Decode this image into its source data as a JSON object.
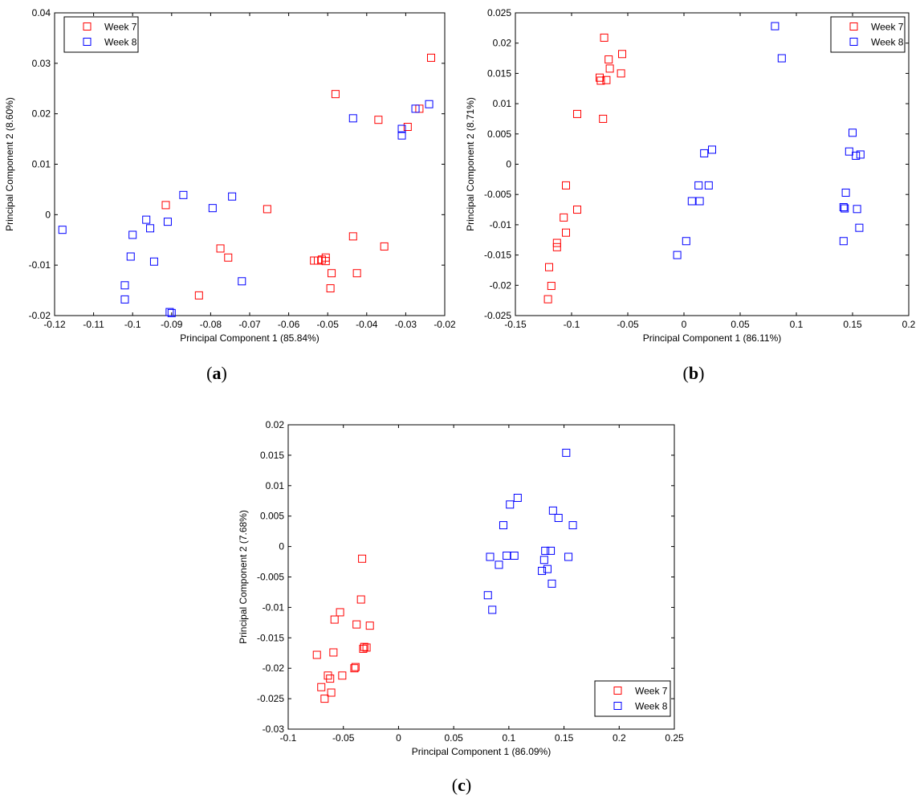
{
  "chart_data": [
    {
      "type": "scatter",
      "panel_label": "a",
      "title": "",
      "xlabel": "Principal Component 1 (85.84%)",
      "ylabel": "Principal Component 2 (8.60%)",
      "xlim": [
        -0.12,
        -0.02
      ],
      "ylim": [
        -0.02,
        0.04
      ],
      "xticks": [
        -0.12,
        -0.11,
        -0.1,
        -0.09,
        -0.08,
        -0.07,
        -0.06,
        -0.05,
        -0.04,
        -0.03,
        -0.02
      ],
      "xtick_labels": [
        "-0.12",
        "-0.11",
        "-0.1",
        "-0.09",
        "-0.08",
        "-0.07",
        "-0.06",
        "-0.05",
        "-0.04",
        "-0.03",
        "-0.02"
      ],
      "yticks": [
        -0.02,
        -0.01,
        0,
        0.01,
        0.02,
        0.03,
        0.04
      ],
      "ytick_labels": [
        "-0.02",
        "-0.01",
        "0",
        "0.01",
        "0.02",
        "0.03",
        "0.04"
      ],
      "legend_position": "top-left",
      "series": [
        {
          "name": "Week 7",
          "color": "#ff0000",
          "points": [
            [
              -0.0915,
              0.0019
            ],
            [
              -0.0775,
              -0.0067
            ],
            [
              -0.0755,
              -0.0085
            ],
            [
              -0.083,
              -0.016
            ],
            [
              -0.0655,
              0.0011
            ],
            [
              -0.0535,
              -0.0091
            ],
            [
              -0.0525,
              -0.0091
            ],
            [
              -0.0515,
              -0.0089
            ],
            [
              -0.0505,
              -0.0085
            ],
            [
              -0.0505,
              -0.0092
            ],
            [
              -0.049,
              -0.0116
            ],
            [
              -0.0493,
              -0.0146
            ],
            [
              -0.048,
              0.0239
            ],
            [
              -0.0435,
              -0.0043
            ],
            [
              -0.0425,
              -0.0116
            ],
            [
              -0.037,
              0.0188
            ],
            [
              -0.0355,
              -0.0063
            ],
            [
              -0.0295,
              0.0174
            ],
            [
              -0.0265,
              0.021
            ],
            [
              -0.0235,
              0.0311
            ]
          ]
        },
        {
          "name": "Week 8",
          "color": "#0000ff",
          "points": [
            [
              -0.118,
              -0.003
            ],
            [
              -0.102,
              -0.014
            ],
            [
              -0.102,
              -0.0168
            ],
            [
              -0.1005,
              -0.0083
            ],
            [
              -0.1,
              -0.004
            ],
            [
              -0.0965,
              -0.001
            ],
            [
              -0.0955,
              -0.0027
            ],
            [
              -0.0945,
              -0.0093
            ],
            [
              -0.091,
              -0.0014
            ],
            [
              -0.0905,
              -0.0193
            ],
            [
              -0.09,
              -0.0195
            ],
            [
              -0.087,
              0.0039
            ],
            [
              -0.0795,
              0.0013
            ],
            [
              -0.0745,
              0.0036
            ],
            [
              -0.072,
              -0.0132
            ],
            [
              -0.0435,
              0.0191
            ],
            [
              -0.031,
              0.0157
            ],
            [
              -0.031,
              0.017
            ],
            [
              -0.0275,
              0.021
            ],
            [
              -0.024,
              0.0219
            ]
          ]
        }
      ]
    },
    {
      "type": "scatter",
      "panel_label": "b",
      "title": "",
      "xlabel": "Principal Component 1 (86.11%)",
      "ylabel": "Principal Component 2 (8.71%)",
      "xlim": [
        -0.15,
        0.2
      ],
      "ylim": [
        -0.025,
        0.025
      ],
      "xticks": [
        -0.15,
        -0.1,
        -0.05,
        0,
        0.05,
        0.1,
        0.15,
        0.2
      ],
      "xtick_labels": [
        "-0.15",
        "-0.1",
        "-0.05",
        "0",
        "0.05",
        "0.1",
        "0.15",
        "0.2"
      ],
      "yticks": [
        -0.025,
        -0.02,
        -0.015,
        -0.01,
        -0.005,
        0,
        0.005,
        0.01,
        0.015,
        0.02,
        0.025
      ],
      "ytick_labels": [
        "-0.025",
        "-0.02",
        "-0.015",
        "-0.01",
        "-0.005",
        "0",
        "0.005",
        "0.01",
        "0.015",
        "0.02",
        "0.025"
      ],
      "legend_position": "top-right",
      "series": [
        {
          "name": "Week 7",
          "color": "#ff0000",
          "points": [
            [
              -0.121,
              -0.0223
            ],
            [
              -0.12,
              -0.017
            ],
            [
              -0.118,
              -0.0201
            ],
            [
              -0.113,
              -0.013
            ],
            [
              -0.113,
              -0.0137
            ],
            [
              -0.107,
              -0.0088
            ],
            [
              -0.105,
              -0.0035
            ],
            [
              -0.105,
              -0.0113
            ],
            [
              -0.095,
              0.0083
            ],
            [
              -0.095,
              -0.0075
            ],
            [
              -0.075,
              0.0143
            ],
            [
              -0.074,
              0.0138
            ],
            [
              -0.072,
              0.0075
            ],
            [
              -0.071,
              0.0209
            ],
            [
              -0.069,
              0.0139
            ],
            [
              -0.067,
              0.0173
            ],
            [
              -0.066,
              0.0158
            ],
            [
              -0.056,
              0.015
            ],
            [
              -0.055,
              0.0182
            ]
          ]
        },
        {
          "name": "Week 8",
          "color": "#0000ff",
          "points": [
            [
              -0.006,
              -0.015
            ],
            [
              0.002,
              -0.0127
            ],
            [
              0.007,
              -0.0061
            ],
            [
              0.013,
              -0.0035
            ],
            [
              0.014,
              -0.0061
            ],
            [
              0.018,
              0.0018
            ],
            [
              0.022,
              -0.0035
            ],
            [
              0.025,
              0.0024
            ],
            [
              0.081,
              0.0228
            ],
            [
              0.087,
              0.0175
            ],
            [
              0.142,
              -0.0127
            ],
            [
              0.142,
              -0.0071
            ],
            [
              0.143,
              -0.0073
            ],
            [
              0.144,
              -0.0047
            ],
            [
              0.147,
              0.0021
            ],
            [
              0.15,
              0.0052
            ],
            [
              0.153,
              0.0014
            ],
            [
              0.154,
              -0.0074
            ],
            [
              0.156,
              -0.0105
            ],
            [
              0.157,
              0.0016
            ]
          ]
        }
      ]
    },
    {
      "type": "scatter",
      "panel_label": "c",
      "title": "",
      "xlabel": "Principal Component 1 (86.09%)",
      "ylabel": "Principal Component 2 (7.68%)",
      "xlim": [
        -0.1,
        0.25
      ],
      "ylim": [
        -0.03,
        0.02
      ],
      "xticks": [
        -0.1,
        -0.05,
        0,
        0.05,
        0.1,
        0.15,
        0.2,
        0.25
      ],
      "xtick_labels": [
        "-0.1",
        "-0.05",
        "0",
        "0.05",
        "0.1",
        "0.15",
        "0.2",
        "0.25"
      ],
      "yticks": [
        -0.03,
        -0.025,
        -0.02,
        -0.015,
        -0.01,
        -0.005,
        0,
        0.005,
        0.01,
        0.015,
        0.02
      ],
      "ytick_labels": [
        "-0.03",
        "-0.025",
        "-0.02",
        "-0.015",
        "-0.01",
        "-0.005",
        "0",
        "0.005",
        "0.01",
        "0.015",
        "0.02"
      ],
      "legend_position": "bottom-right",
      "series": [
        {
          "name": "Week 7",
          "color": "#ff0000",
          "points": [
            [
              -0.074,
              -0.0178
            ],
            [
              -0.07,
              -0.0231
            ],
            [
              -0.067,
              -0.025
            ],
            [
              -0.064,
              -0.0212
            ],
            [
              -0.062,
              -0.0217
            ],
            [
              -0.061,
              -0.024
            ],
            [
              -0.059,
              -0.0174
            ],
            [
              -0.058,
              -0.012
            ],
            [
              -0.053,
              -0.0108
            ],
            [
              -0.051,
              -0.0212
            ],
            [
              -0.04,
              -0.02
            ],
            [
              -0.039,
              -0.0198
            ],
            [
              -0.038,
              -0.0128
            ],
            [
              -0.034,
              -0.0087
            ],
            [
              -0.033,
              -0.002
            ],
            [
              -0.032,
              -0.0168
            ],
            [
              -0.031,
              -0.0165
            ],
            [
              -0.029,
              -0.0166
            ],
            [
              -0.026,
              -0.013
            ]
          ]
        },
        {
          "name": "Week 8",
          "color": "#0000ff",
          "points": [
            [
              0.081,
              -0.008
            ],
            [
              0.083,
              -0.0017
            ],
            [
              0.085,
              -0.0104
            ],
            [
              0.091,
              -0.003
            ],
            [
              0.095,
              0.0035
            ],
            [
              0.098,
              -0.0015
            ],
            [
              0.101,
              0.0069
            ],
            [
              0.105,
              -0.0015
            ],
            [
              0.108,
              0.008
            ],
            [
              0.13,
              -0.004
            ],
            [
              0.132,
              -0.0022
            ],
            [
              0.133,
              -0.0007
            ],
            [
              0.135,
              -0.0037
            ],
            [
              0.138,
              -0.0007
            ],
            [
              0.139,
              -0.0061
            ],
            [
              0.14,
              0.0059
            ],
            [
              0.145,
              0.0047
            ],
            [
              0.152,
              0.0154
            ],
            [
              0.154,
              -0.0017
            ],
            [
              0.158,
              0.0035
            ]
          ]
        }
      ]
    }
  ]
}
